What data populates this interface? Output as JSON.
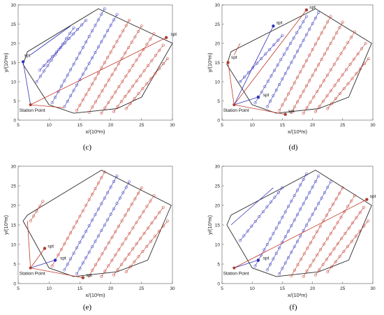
{
  "figure": {
    "colors": {
      "boundary": "#2b2b2b",
      "red": "#c0392b",
      "blue": "#3333bb",
      "point_red": "#b03a2e"
    }
  },
  "chart_data": [
    {
      "type": "line",
      "panel_label": "(c)",
      "xlabel": "x/(10²m)",
      "ylabel": "y/(10²m)",
      "xlim": [
        5,
        30
      ],
      "ylim": [
        0,
        30
      ],
      "xticks": [
        "5",
        "10",
        "15",
        "20",
        "25",
        "30"
      ],
      "yticks": [
        "0",
        "5",
        "10",
        "15",
        "20",
        "25",
        "30"
      ],
      "grid": false,
      "annotations": [
        {
          "text": "spt",
          "x": 6,
          "y": 16.5
        },
        {
          "text": "spt",
          "x": 29.7,
          "y": 22
        },
        {
          "text": "Station Point",
          "x": 5.2,
          "y": 2.2
        }
      ],
      "boundary": [
        [
          5.8,
          14.5
        ],
        [
          6.5,
          17.8
        ],
        [
          18,
          29
        ],
        [
          30,
          20
        ],
        [
          25,
          6
        ],
        [
          21,
          3
        ],
        [
          14,
          1.8
        ],
        [
          10,
          4
        ]
      ],
      "station": [
        7,
        4
      ],
      "spt_points": [
        {
          "x": 5.8,
          "y": 15.2,
          "color": "blue"
        },
        {
          "x": 29,
          "y": 21.5,
          "color": "red"
        }
      ],
      "sweeps": [
        {
          "color": "blue",
          "from": [
            10.5,
            4.5
          ],
          "to": [
            19,
            29
          ]
        },
        {
          "color": "blue",
          "from": [
            12.5,
            3.5
          ],
          "to": [
            21,
            27.5
          ]
        },
        {
          "color": "red",
          "from": [
            14.5,
            2.5
          ],
          "to": [
            23,
            26
          ]
        },
        {
          "color": "red",
          "from": [
            16.5,
            2
          ],
          "to": [
            25,
            24.5
          ]
        },
        {
          "color": "red",
          "from": [
            18.5,
            1.8
          ],
          "to": [
            27,
            22.5
          ]
        },
        {
          "color": "red",
          "from": [
            20.5,
            2.2
          ],
          "to": [
            28.5,
            19.5
          ]
        },
        {
          "color": "red",
          "from": [
            22.5,
            3
          ],
          "to": [
            29.2,
            16
          ]
        },
        {
          "color": "blue",
          "from": [
            8,
            10
          ],
          "to": [
            14,
            24
          ]
        },
        {
          "color": "blue",
          "from": [
            8.5,
            13
          ],
          "to": [
            16,
            26
          ]
        }
      ],
      "paths": [
        {
          "color": "blue",
          "points": [
            [
              5.8,
              15.2
            ],
            [
              7,
              4
            ]
          ]
        },
        {
          "color": "blue",
          "points": [
            [
              7,
              17
            ],
            [
              13.5,
              24.5
            ]
          ]
        },
        {
          "color": "red",
          "points": [
            [
              7,
              4
            ],
            [
              29,
              21.5
            ]
          ]
        },
        {
          "color": "red",
          "points": [
            [
              7,
              4
            ],
            [
              12.5,
              3.2
            ]
          ]
        }
      ]
    },
    {
      "type": "line",
      "panel_label": "(d)",
      "xlabel": "x/(10²m)",
      "ylabel": "y/(10²m)",
      "xlim": [
        5,
        30
      ],
      "ylim": [
        0,
        30
      ],
      "xticks": [
        "5",
        "10",
        "15",
        "20",
        "25",
        "30"
      ],
      "yticks": [
        "0",
        "5",
        "10",
        "15",
        "20",
        "25",
        "30"
      ],
      "grid": false,
      "annotations": [
        {
          "text": "spt",
          "x": 19.5,
          "y": 29
        },
        {
          "text": "spt",
          "x": 14,
          "y": 25
        },
        {
          "text": "spt",
          "x": 6.5,
          "y": 16
        },
        {
          "text": "spt",
          "x": 11.8,
          "y": 6.2
        },
        {
          "text": "spt",
          "x": 16,
          "y": 2
        },
        {
          "text": "Station Point",
          "x": 5.2,
          "y": 2.2
        }
      ],
      "boundary": [
        [
          5.8,
          14.5
        ],
        [
          6.5,
          17.8
        ],
        [
          20.5,
          29
        ],
        [
          29.8,
          20
        ],
        [
          26,
          6
        ],
        [
          21,
          3
        ],
        [
          14,
          1.8
        ],
        [
          10,
          4
        ]
      ],
      "station": [
        7,
        4
      ],
      "spt_points": [
        {
          "x": 19,
          "y": 28.7,
          "color": "red"
        },
        {
          "x": 13.5,
          "y": 24.5,
          "color": "blue"
        },
        {
          "x": 6,
          "y": 15,
          "color": "red"
        },
        {
          "x": 11,
          "y": 6,
          "color": "blue"
        },
        {
          "x": 15.5,
          "y": 1.5,
          "color": "red"
        }
      ],
      "sweeps": [
        {
          "color": "blue",
          "from": [
            10.5,
            4.5
          ],
          "to": [
            19,
            27
          ]
        },
        {
          "color": "blue",
          "from": [
            12.5,
            3.5
          ],
          "to": [
            21,
            28
          ]
        },
        {
          "color": "red",
          "from": [
            14.5,
            2.5
          ],
          "to": [
            23,
            27
          ]
        },
        {
          "color": "red",
          "from": [
            16.5,
            2
          ],
          "to": [
            25,
            25.5
          ]
        },
        {
          "color": "red",
          "from": [
            18.5,
            1.8
          ],
          "to": [
            27,
            23
          ]
        },
        {
          "color": "red",
          "from": [
            20.5,
            2.2
          ],
          "to": [
            28.8,
            20
          ]
        },
        {
          "color": "red",
          "from": [
            22.5,
            3
          ],
          "to": [
            29.3,
            16
          ]
        },
        {
          "color": "blue",
          "from": [
            8,
            10
          ],
          "to": [
            15,
            22
          ]
        }
      ],
      "paths": [
        {
          "color": "red",
          "points": [
            [
              7,
              4
            ],
            [
              6,
              15
            ]
          ]
        },
        {
          "color": "red",
          "points": [
            [
              7,
              4
            ],
            [
              19,
              28.7
            ]
          ]
        },
        {
          "color": "blue",
          "points": [
            [
              7,
              4
            ],
            [
              13.5,
              24.5
            ]
          ]
        },
        {
          "color": "blue",
          "points": [
            [
              7,
              4
            ],
            [
              11,
              6
            ]
          ]
        },
        {
          "color": "red",
          "points": [
            [
              7,
              4
            ],
            [
              15.5,
              1.5
            ]
          ]
        },
        {
          "color": "red",
          "points": [
            [
              7,
              17
            ],
            [
              8,
              20
            ]
          ]
        }
      ]
    },
    {
      "type": "line",
      "panel_label": "(e)",
      "xlabel": "x/(10²m)",
      "ylabel": "y/(10²m)",
      "xlim": [
        5,
        30
      ],
      "ylim": [
        0,
        30
      ],
      "xticks": [
        "5",
        "10",
        "15",
        "20",
        "25",
        "30"
      ],
      "yticks": [
        "0",
        "5",
        "10",
        "15",
        "20",
        "25",
        "30"
      ],
      "grid": false,
      "annotations": [
        {
          "text": "spt",
          "x": 9.8,
          "y": 9.2
        },
        {
          "text": "spt",
          "x": 11.8,
          "y": 6.2
        },
        {
          "text": "spt",
          "x": 16,
          "y": 1.8
        },
        {
          "text": "Station Point",
          "x": 5.2,
          "y": 2.2
        }
      ],
      "boundary": [
        [
          5.8,
          16
        ],
        [
          6.5,
          17.5
        ],
        [
          18.5,
          29
        ],
        [
          29.8,
          20
        ],
        [
          26,
          6
        ],
        [
          21,
          3
        ],
        [
          14,
          1.8
        ],
        [
          10,
          4
        ]
      ],
      "station": [
        7,
        4
      ],
      "spt_points": [
        {
          "x": 9.3,
          "y": 9,
          "color": "red"
        },
        {
          "x": 11,
          "y": 6,
          "color": "blue"
        },
        {
          "x": 15.5,
          "y": 1.5,
          "color": "red"
        }
      ],
      "sweeps": [
        {
          "color": "red",
          "from": [
            10.5,
            4.5
          ],
          "to": [
            19,
            28.5
          ]
        },
        {
          "color": "blue",
          "from": [
            12.5,
            3.5
          ],
          "to": [
            21,
            27.5
          ]
        },
        {
          "color": "blue",
          "from": [
            14.5,
            2.5
          ],
          "to": [
            23,
            26
          ]
        },
        {
          "color": "red",
          "from": [
            16.5,
            2
          ],
          "to": [
            25,
            24.5
          ]
        },
        {
          "color": "red",
          "from": [
            18.5,
            1.8
          ],
          "to": [
            27,
            22.5
          ]
        },
        {
          "color": "red",
          "from": [
            20.5,
            2.2
          ],
          "to": [
            28.5,
            19.5
          ]
        },
        {
          "color": "red",
          "from": [
            22.5,
            3
          ],
          "to": [
            29.2,
            16
          ]
        },
        {
          "color": "red",
          "from": [
            7,
            16
          ],
          "to": [
            9,
            21
          ]
        }
      ],
      "paths": [
        {
          "color": "red",
          "points": [
            [
              7,
              4
            ],
            [
              9.3,
              9
            ]
          ]
        },
        {
          "color": "blue",
          "points": [
            [
              7,
              4
            ],
            [
              11,
              6
            ]
          ]
        },
        {
          "color": "red",
          "points": [
            [
              7,
              4
            ],
            [
              15.5,
              1.5
            ]
          ]
        },
        {
          "color": "red",
          "points": [
            [
              7,
              4
            ],
            [
              6.5,
              16
            ]
          ]
        }
      ]
    },
    {
      "type": "line",
      "panel_label": "(f)",
      "xlabel": "x/(10²m)",
      "ylabel": "y/(10²m)",
      "xlim": [
        5,
        30
      ],
      "ylim": [
        0,
        30
      ],
      "xticks": [
        "5",
        "10",
        "15",
        "20",
        "25",
        "30"
      ],
      "yticks": [
        "0",
        "5",
        "10",
        "15",
        "20",
        "25",
        "30"
      ],
      "grid": false,
      "annotations": [
        {
          "text": "spt",
          "x": 29.5,
          "y": 22
        },
        {
          "text": "spt",
          "x": 11.8,
          "y": 6.2
        },
        {
          "text": "Station Point",
          "x": 5.2,
          "y": 2.2
        }
      ],
      "boundary": [
        [
          5.8,
          15
        ],
        [
          6.5,
          17.5
        ],
        [
          20.5,
          29
        ],
        [
          29.8,
          20
        ],
        [
          26,
          6
        ],
        [
          21,
          3
        ],
        [
          14,
          1.8
        ],
        [
          10,
          4
        ]
      ],
      "station": [
        7,
        4
      ],
      "spt_points": [
        {
          "x": 29,
          "y": 21.5,
          "color": "red"
        },
        {
          "x": 11,
          "y": 6,
          "color": "blue"
        }
      ],
      "sweeps": [
        {
          "color": "blue",
          "from": [
            10.5,
            4.5
          ],
          "to": [
            19,
            28
          ]
        },
        {
          "color": "blue",
          "from": [
            12.5,
            3.5
          ],
          "to": [
            21,
            27.5
          ]
        },
        {
          "color": "blue",
          "from": [
            14.5,
            2.5
          ],
          "to": [
            23,
            26
          ]
        },
        {
          "color": "red",
          "from": [
            16.5,
            2
          ],
          "to": [
            25,
            24.5
          ]
        },
        {
          "color": "red",
          "from": [
            18.5,
            1.8
          ],
          "to": [
            27,
            22.5
          ]
        },
        {
          "color": "red",
          "from": [
            20.5,
            2.2
          ],
          "to": [
            28.5,
            19.5
          ]
        },
        {
          "color": "red",
          "from": [
            22.5,
            3
          ],
          "to": [
            29.2,
            16
          ]
        },
        {
          "color": "blue",
          "from": [
            8,
            11
          ],
          "to": [
            15,
            24.5
          ]
        }
      ],
      "paths": [
        {
          "color": "red",
          "points": [
            [
              7,
              4
            ],
            [
              29,
              21.5
            ]
          ]
        },
        {
          "color": "blue",
          "points": [
            [
              7,
              4
            ],
            [
              11,
              6
            ]
          ]
        },
        {
          "color": "blue",
          "points": [
            [
              6.5,
              15
            ],
            [
              13.5,
              24.5
            ]
          ]
        }
      ]
    }
  ]
}
